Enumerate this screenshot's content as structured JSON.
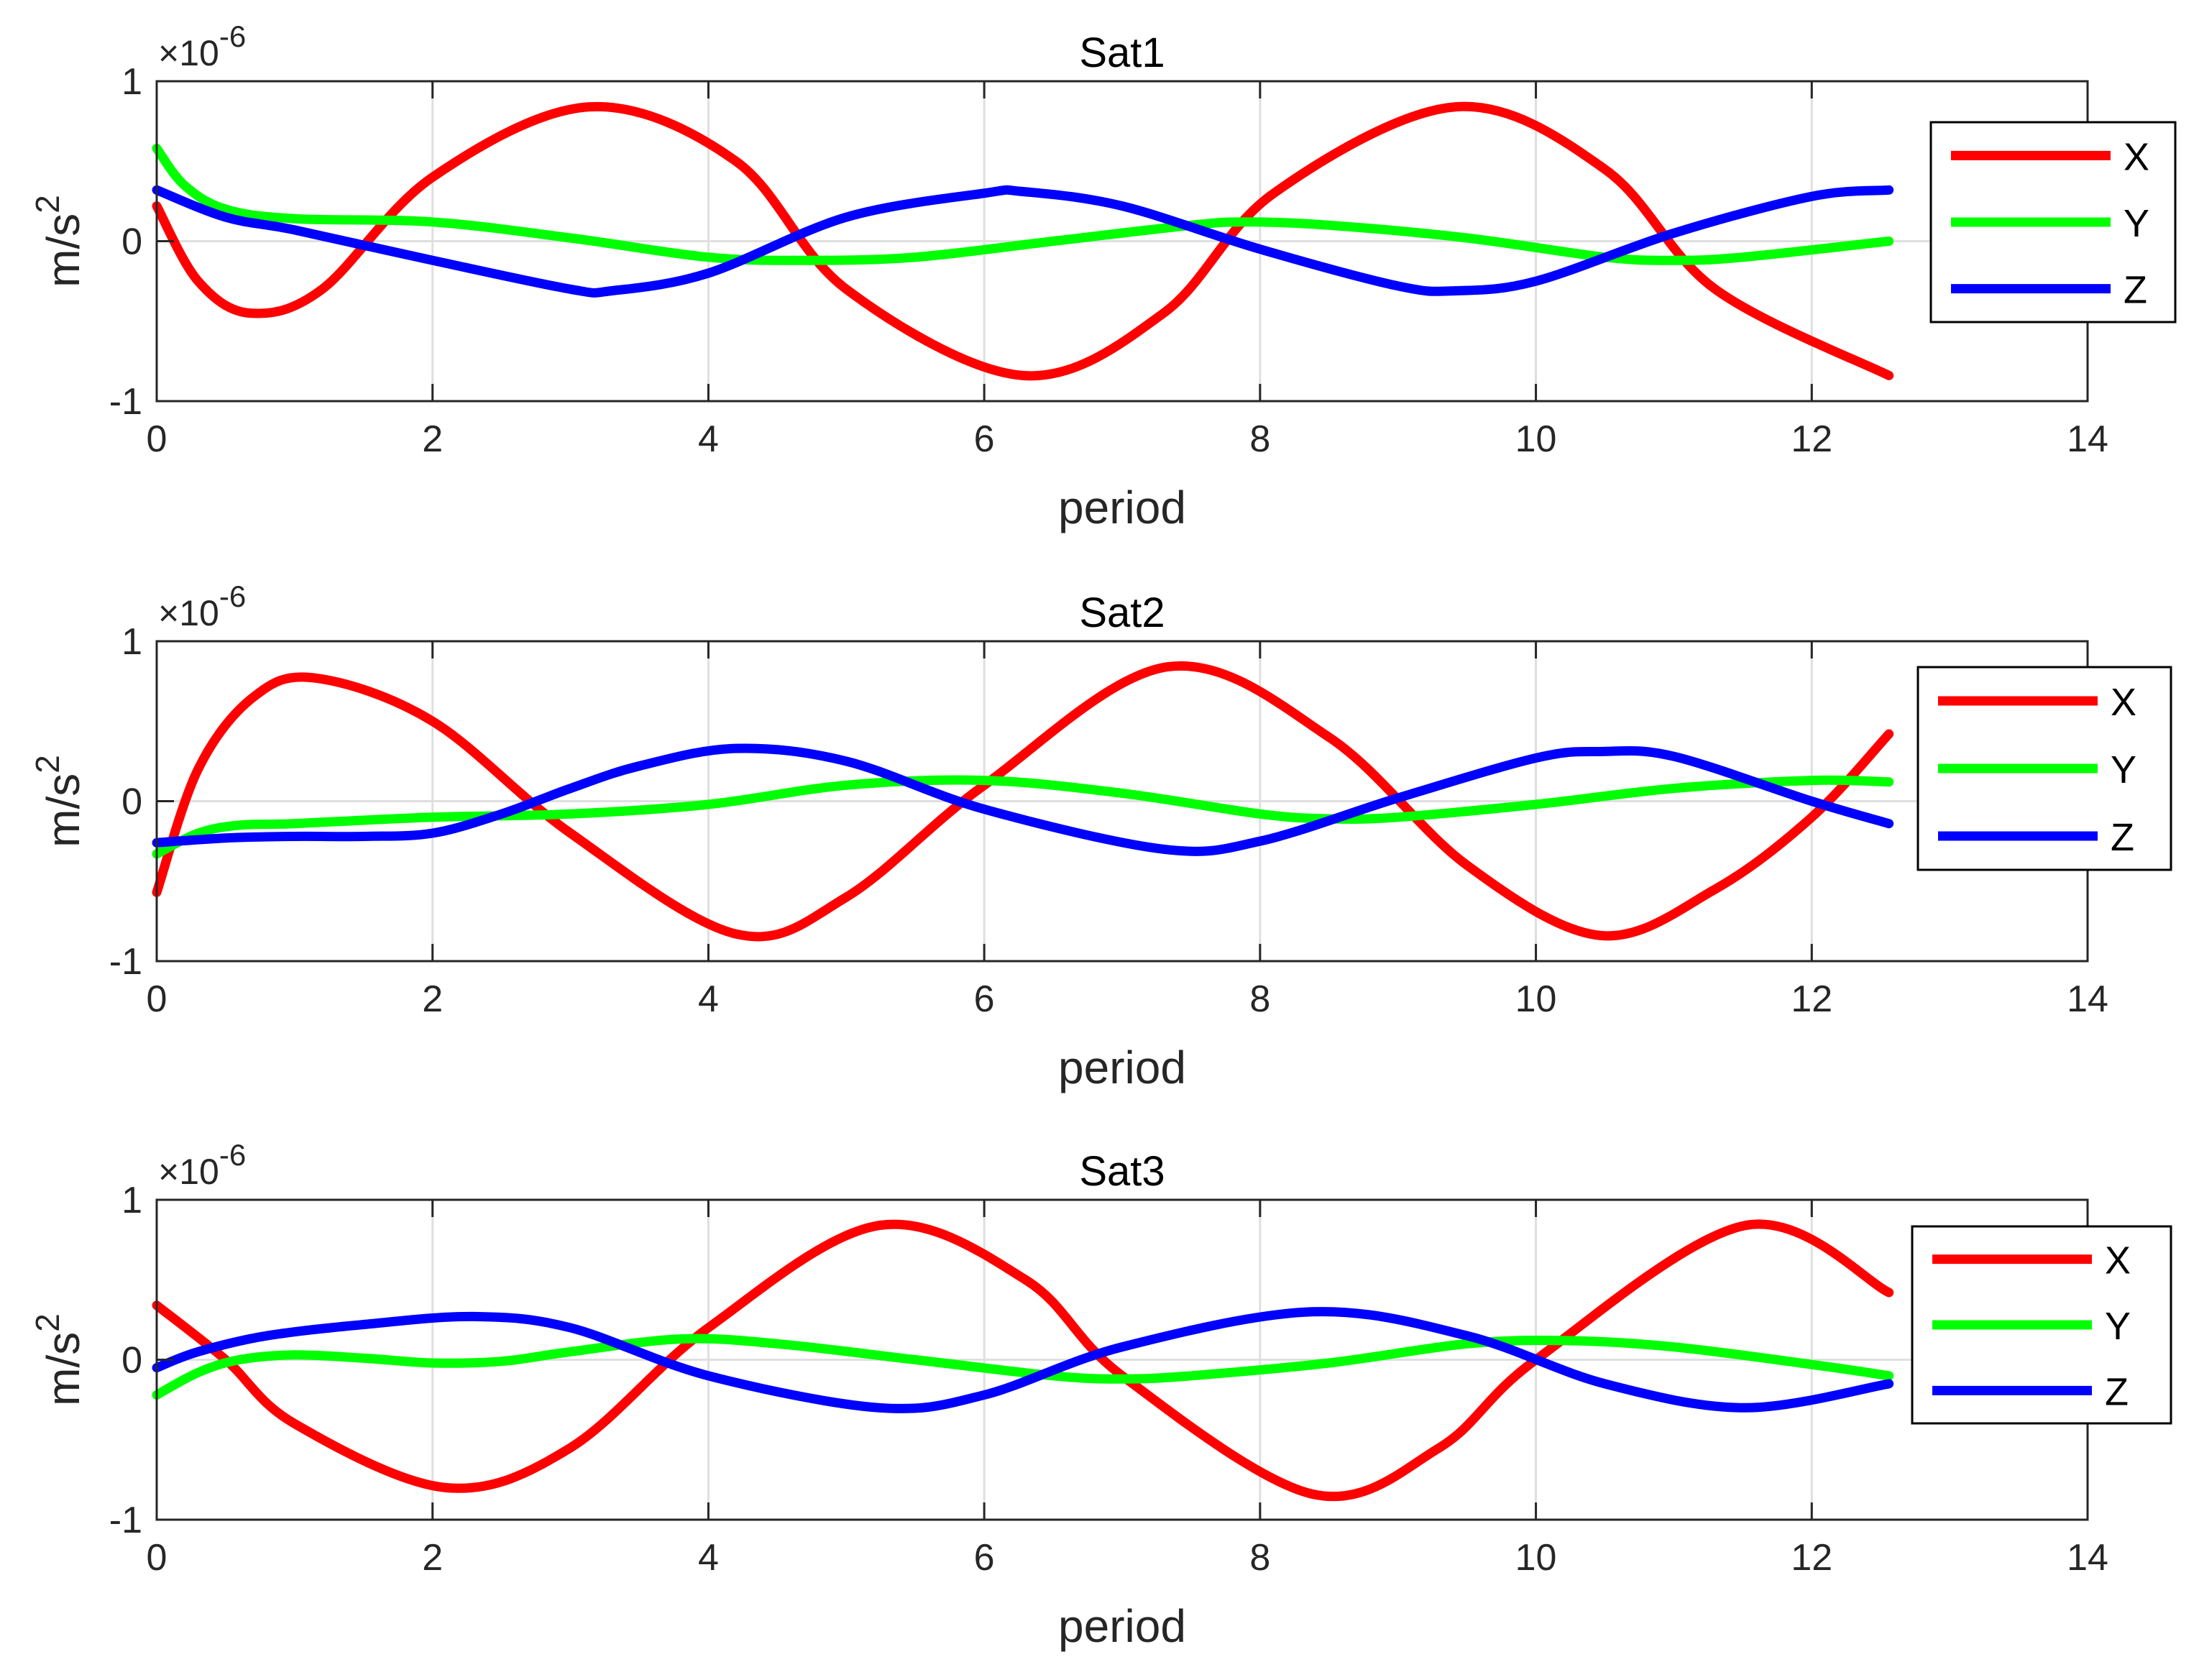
{
  "chart_data": [
    {
      "type": "line",
      "title": "Sat1",
      "xlabel": "period",
      "ylabel": "m/s",
      "ylabel_superscript": "2",
      "exponent_label": "×10",
      "exponent_superscript": "-6",
      "xlim": [
        0,
        14
      ],
      "ylim": [
        -1,
        1
      ],
      "xticks": [
        "0",
        "2",
        "4",
        "6",
        "8",
        "10",
        "12",
        "14"
      ],
      "yticks": [
        "-1",
        "0",
        "1"
      ],
      "grid": true,
      "legend_position": "right",
      "series": [
        {
          "name": "X",
          "color": "#ff0000",
          "x": [
            0,
            0.3,
            0.68,
            1.2,
            2.0,
            3.14,
            4.2,
            5.0,
            6.28,
            7.3,
            8.1,
            9.42,
            10.5,
            11.3,
            12.56
          ],
          "y": [
            0.22,
            -0.25,
            -0.45,
            -0.3,
            0.4,
            0.84,
            0.5,
            -0.3,
            -0.84,
            -0.45,
            0.3,
            0.84,
            0.45,
            -0.3,
            -0.84
          ]
        },
        {
          "name": "Y",
          "color": "#00ff00",
          "x": [
            0,
            0.2,
            0.5,
            1.0,
            2.0,
            3.0,
            4.0,
            4.7,
            5.5,
            6.5,
            7.5,
            7.9,
            8.5,
            9.5,
            10.5,
            11.0,
            11.5,
            12.56
          ],
          "y": [
            0.58,
            0.35,
            0.2,
            0.14,
            0.12,
            0.02,
            -0.1,
            -0.12,
            -0.1,
            0.0,
            0.1,
            0.12,
            0.1,
            0.02,
            -0.1,
            -0.12,
            -0.1,
            0.0
          ]
        },
        {
          "name": "Z",
          "color": "#0000ff",
          "x": [
            0,
            0.5,
            1.0,
            2.0,
            3.0,
            3.3,
            4.0,
            5.0,
            6.0,
            6.28,
            7.0,
            8.0,
            9.0,
            9.42,
            10.0,
            11.0,
            12.0,
            12.56
          ],
          "y": [
            0.32,
            0.15,
            0.07,
            -0.12,
            -0.3,
            -0.31,
            -0.2,
            0.15,
            0.3,
            0.31,
            0.22,
            -0.05,
            -0.28,
            -0.31,
            -0.25,
            0.05,
            0.28,
            0.32
          ]
        }
      ]
    },
    {
      "type": "line",
      "title": "Sat2",
      "xlabel": "period",
      "ylabel": "m/s",
      "ylabel_superscript": "2",
      "exponent_label": "×10",
      "exponent_superscript": "-6",
      "xlim": [
        0,
        14
      ],
      "ylim": [
        -1,
        1
      ],
      "xticks": [
        "0",
        "2",
        "4",
        "6",
        "8",
        "10",
        "12",
        "14"
      ],
      "yticks": [
        "-1",
        "0",
        "1"
      ],
      "grid": true,
      "legend_position": "right",
      "series": [
        {
          "name": "X",
          "color": "#ff0000",
          "x": [
            0,
            0.3,
            0.7,
            1.15,
            2.0,
            3.0,
            4.2,
            5.0,
            6.0,
            7.33,
            8.5,
            9.5,
            10.47,
            11.3,
            12.0,
            12.56
          ],
          "y": [
            -0.57,
            0.2,
            0.65,
            0.77,
            0.5,
            -0.2,
            -0.83,
            -0.6,
            0.1,
            0.84,
            0.4,
            -0.4,
            -0.84,
            -0.55,
            -0.1,
            0.42
          ]
        },
        {
          "name": "Y",
          "color": "#00ff00",
          "x": [
            0,
            0.3,
            0.6,
            1.0,
            2.0,
            3.0,
            4.0,
            5.0,
            6.0,
            7.0,
            8.0,
            8.5,
            9.0,
            10.0,
            11.0,
            12.0,
            12.56
          ],
          "y": [
            -0.33,
            -0.2,
            -0.15,
            -0.14,
            -0.1,
            -0.08,
            -0.02,
            0.1,
            0.13,
            0.05,
            -0.08,
            -0.11,
            -0.1,
            -0.02,
            0.08,
            0.13,
            0.12
          ]
        },
        {
          "name": "Z",
          "color": "#0000ff",
          "x": [
            0,
            0.5,
            1.0,
            1.5,
            2.0,
            2.5,
            3.0,
            3.5,
            4.2,
            5.0,
            6.0,
            7.3,
            8.0,
            9.0,
            10.0,
            10.47,
            11.0,
            12.0,
            12.56
          ],
          "y": [
            -0.26,
            -0.23,
            -0.22,
            -0.22,
            -0.2,
            -0.08,
            0.08,
            0.22,
            0.33,
            0.25,
            -0.05,
            -0.3,
            -0.25,
            0.02,
            0.27,
            0.31,
            0.28,
            0.0,
            -0.14
          ]
        }
      ]
    },
    {
      "type": "line",
      "title": "Sat3",
      "xlabel": "period",
      "ylabel": "m/s",
      "ylabel_superscript": "2",
      "exponent_label": "×10",
      "exponent_superscript": "-6",
      "xlim": [
        0,
        14
      ],
      "ylim": [
        -1,
        1
      ],
      "xticks": [
        "0",
        "2",
        "4",
        "6",
        "8",
        "10",
        "12",
        "14"
      ],
      "yticks": [
        "-1",
        "0",
        "1"
      ],
      "grid": true,
      "legend_position": "right",
      "series": [
        {
          "name": "X",
          "color": "#ff0000",
          "x": [
            0,
            0.5,
            1.0,
            2.1,
            3.0,
            4.0,
            5.24,
            6.3,
            7.0,
            8.38,
            9.3,
            10.0,
            11.52,
            12.56
          ],
          "y": [
            0.34,
            0.0,
            -0.4,
            -0.8,
            -0.55,
            0.2,
            0.84,
            0.5,
            -0.1,
            -0.84,
            -0.55,
            0.0,
            0.84,
            0.42
          ]
        },
        {
          "name": "Y",
          "color": "#00ff00",
          "x": [
            0,
            0.3,
            0.6,
            1.0,
            1.5,
            2.0,
            2.5,
            3.0,
            3.8,
            4.5,
            5.5,
            6.5,
            7.0,
            7.5,
            8.5,
            9.5,
            10.2,
            11.0,
            12.0,
            12.56
          ],
          "y": [
            -0.22,
            -0.08,
            0.0,
            0.03,
            0.01,
            -0.02,
            -0.01,
            0.05,
            0.13,
            0.1,
            0.0,
            -0.1,
            -0.12,
            -0.1,
            -0.02,
            0.1,
            0.12,
            0.08,
            -0.03,
            -0.1
          ]
        },
        {
          "name": "Z",
          "color": "#0000ff",
          "x": [
            0,
            0.3,
            0.8,
            1.5,
            2.3,
            3.0,
            4.0,
            5.24,
            6.0,
            7.0,
            8.38,
            9.5,
            10.5,
            11.52,
            12.56
          ],
          "y": [
            -0.05,
            0.05,
            0.15,
            0.22,
            0.27,
            0.2,
            -0.1,
            -0.3,
            -0.22,
            0.08,
            0.3,
            0.15,
            -0.15,
            -0.3,
            -0.15
          ]
        }
      ]
    }
  ]
}
